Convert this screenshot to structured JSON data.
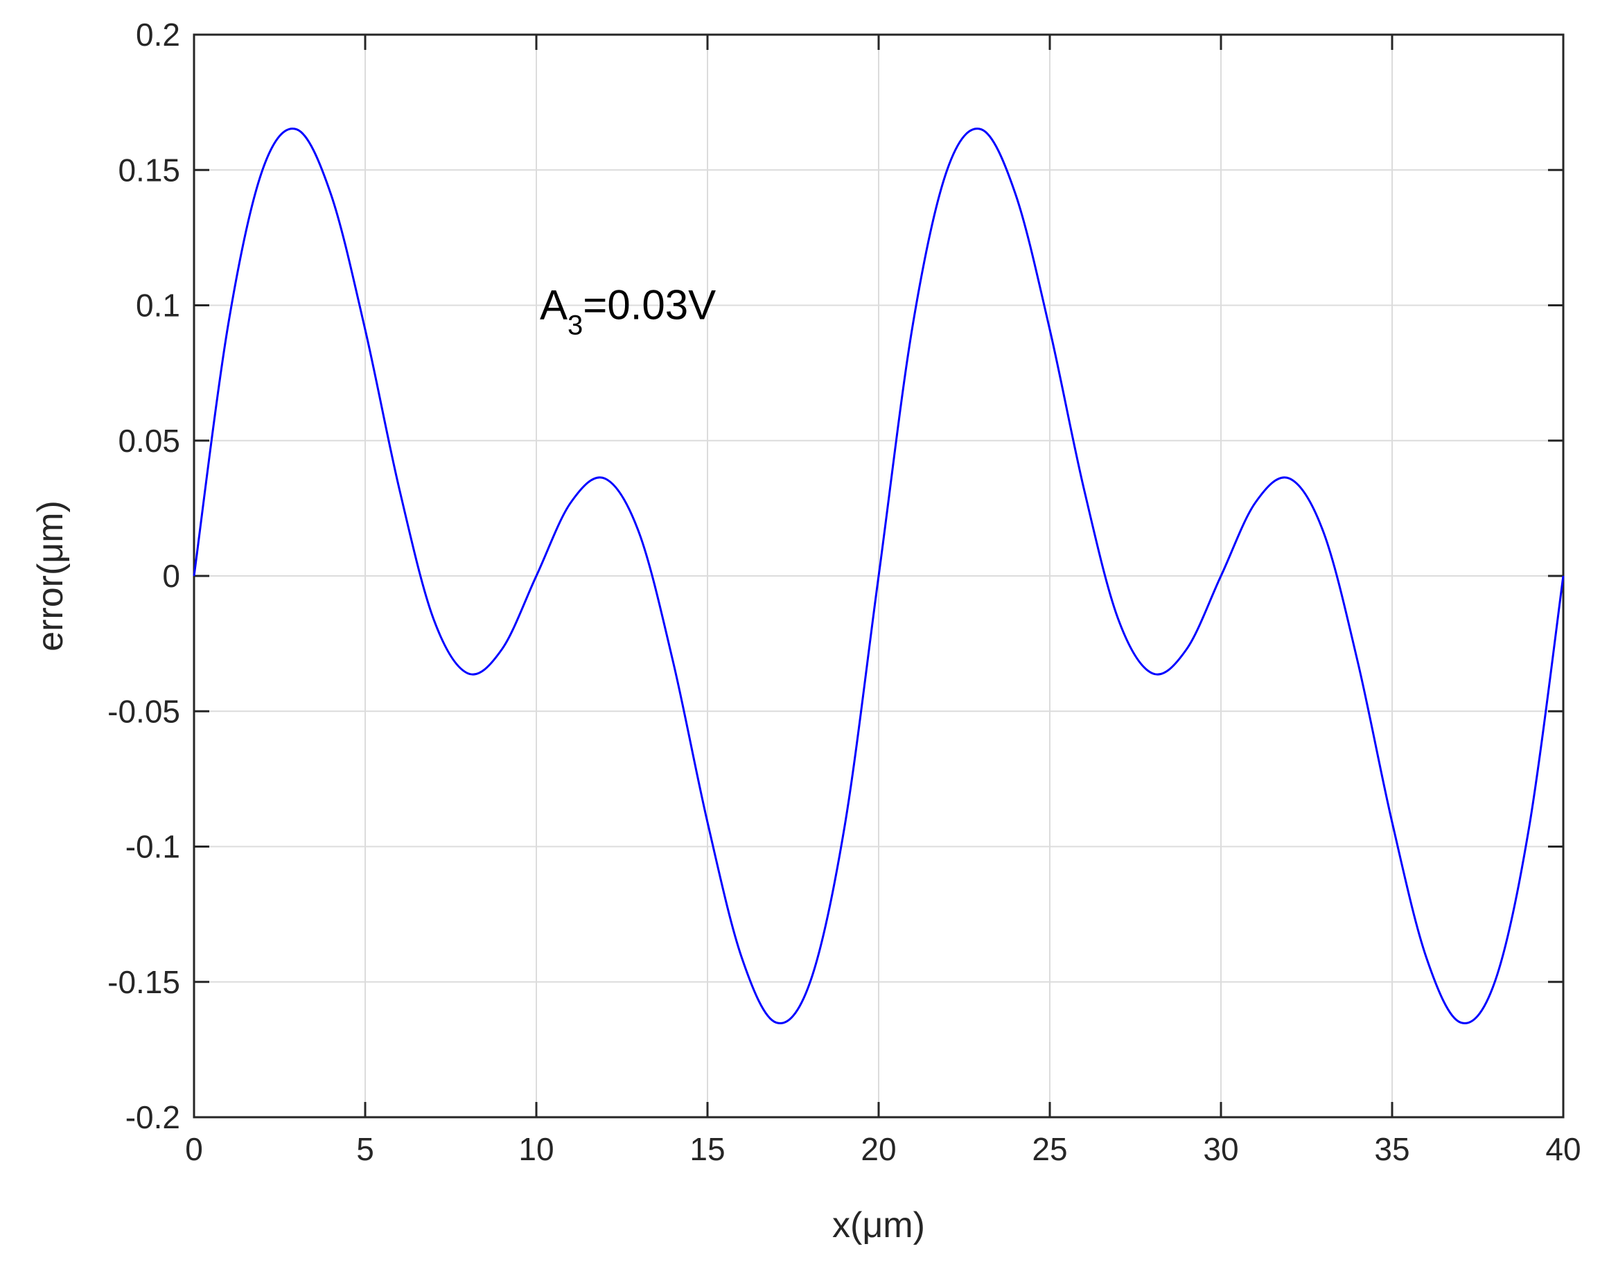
{
  "chart_data": {
    "type": "line",
    "title": "",
    "xlabel": "x(μm)",
    "ylabel": "error(μm)",
    "xlim": [
      0,
      40
    ],
    "ylim": [
      -0.2,
      0.2
    ],
    "xticks": [
      0,
      5,
      10,
      15,
      20,
      25,
      30,
      35,
      40
    ],
    "yticks": [
      -0.2,
      -0.15,
      -0.1,
      -0.05,
      0,
      0.05,
      0.1,
      0.15,
      0.2
    ],
    "xtick_labels": [
      "0",
      "5",
      "10",
      "15",
      "20",
      "25",
      "30",
      "35",
      "40"
    ],
    "ytick_labels": [
      "-0.2",
      "-0.15",
      "-0.1",
      "-0.05",
      "0",
      "0.05",
      "0.1",
      "0.15",
      "0.2"
    ],
    "grid": true,
    "annotation": {
      "base": "A",
      "subscript": "3",
      "text": "=0.03V",
      "x": 10,
      "y": 0.1
    },
    "colors": {
      "line": "#0000ff",
      "grid": "#dcdcdc",
      "axes": "#262626"
    },
    "series": [
      {
        "color": "#0000ff",
        "x": [
          0,
          1,
          2,
          3,
          4,
          5,
          6,
          7,
          8,
          9,
          10,
          11,
          12,
          13,
          14,
          15,
          16,
          17,
          18,
          19,
          20,
          21,
          22,
          23,
          24,
          25,
          26,
          27,
          28,
          29,
          30,
          31,
          32,
          33,
          34,
          35,
          36,
          37,
          38,
          39,
          40
        ],
        "y": [
          0,
          0.093,
          0.15,
          0.165,
          0.141,
          0.091,
          0.032,
          -0.016,
          -0.036,
          -0.027,
          0,
          0.027,
          0.036,
          0.016,
          -0.032,
          -0.091,
          -0.141,
          -0.165,
          -0.15,
          -0.093,
          0,
          0.093,
          0.15,
          0.165,
          0.141,
          0.091,
          0.032,
          -0.016,
          -0.036,
          -0.027,
          0,
          0.027,
          0.036,
          0.016,
          -0.032,
          -0.091,
          -0.141,
          -0.165,
          -0.15,
          -0.093,
          0
        ]
      }
    ]
  }
}
